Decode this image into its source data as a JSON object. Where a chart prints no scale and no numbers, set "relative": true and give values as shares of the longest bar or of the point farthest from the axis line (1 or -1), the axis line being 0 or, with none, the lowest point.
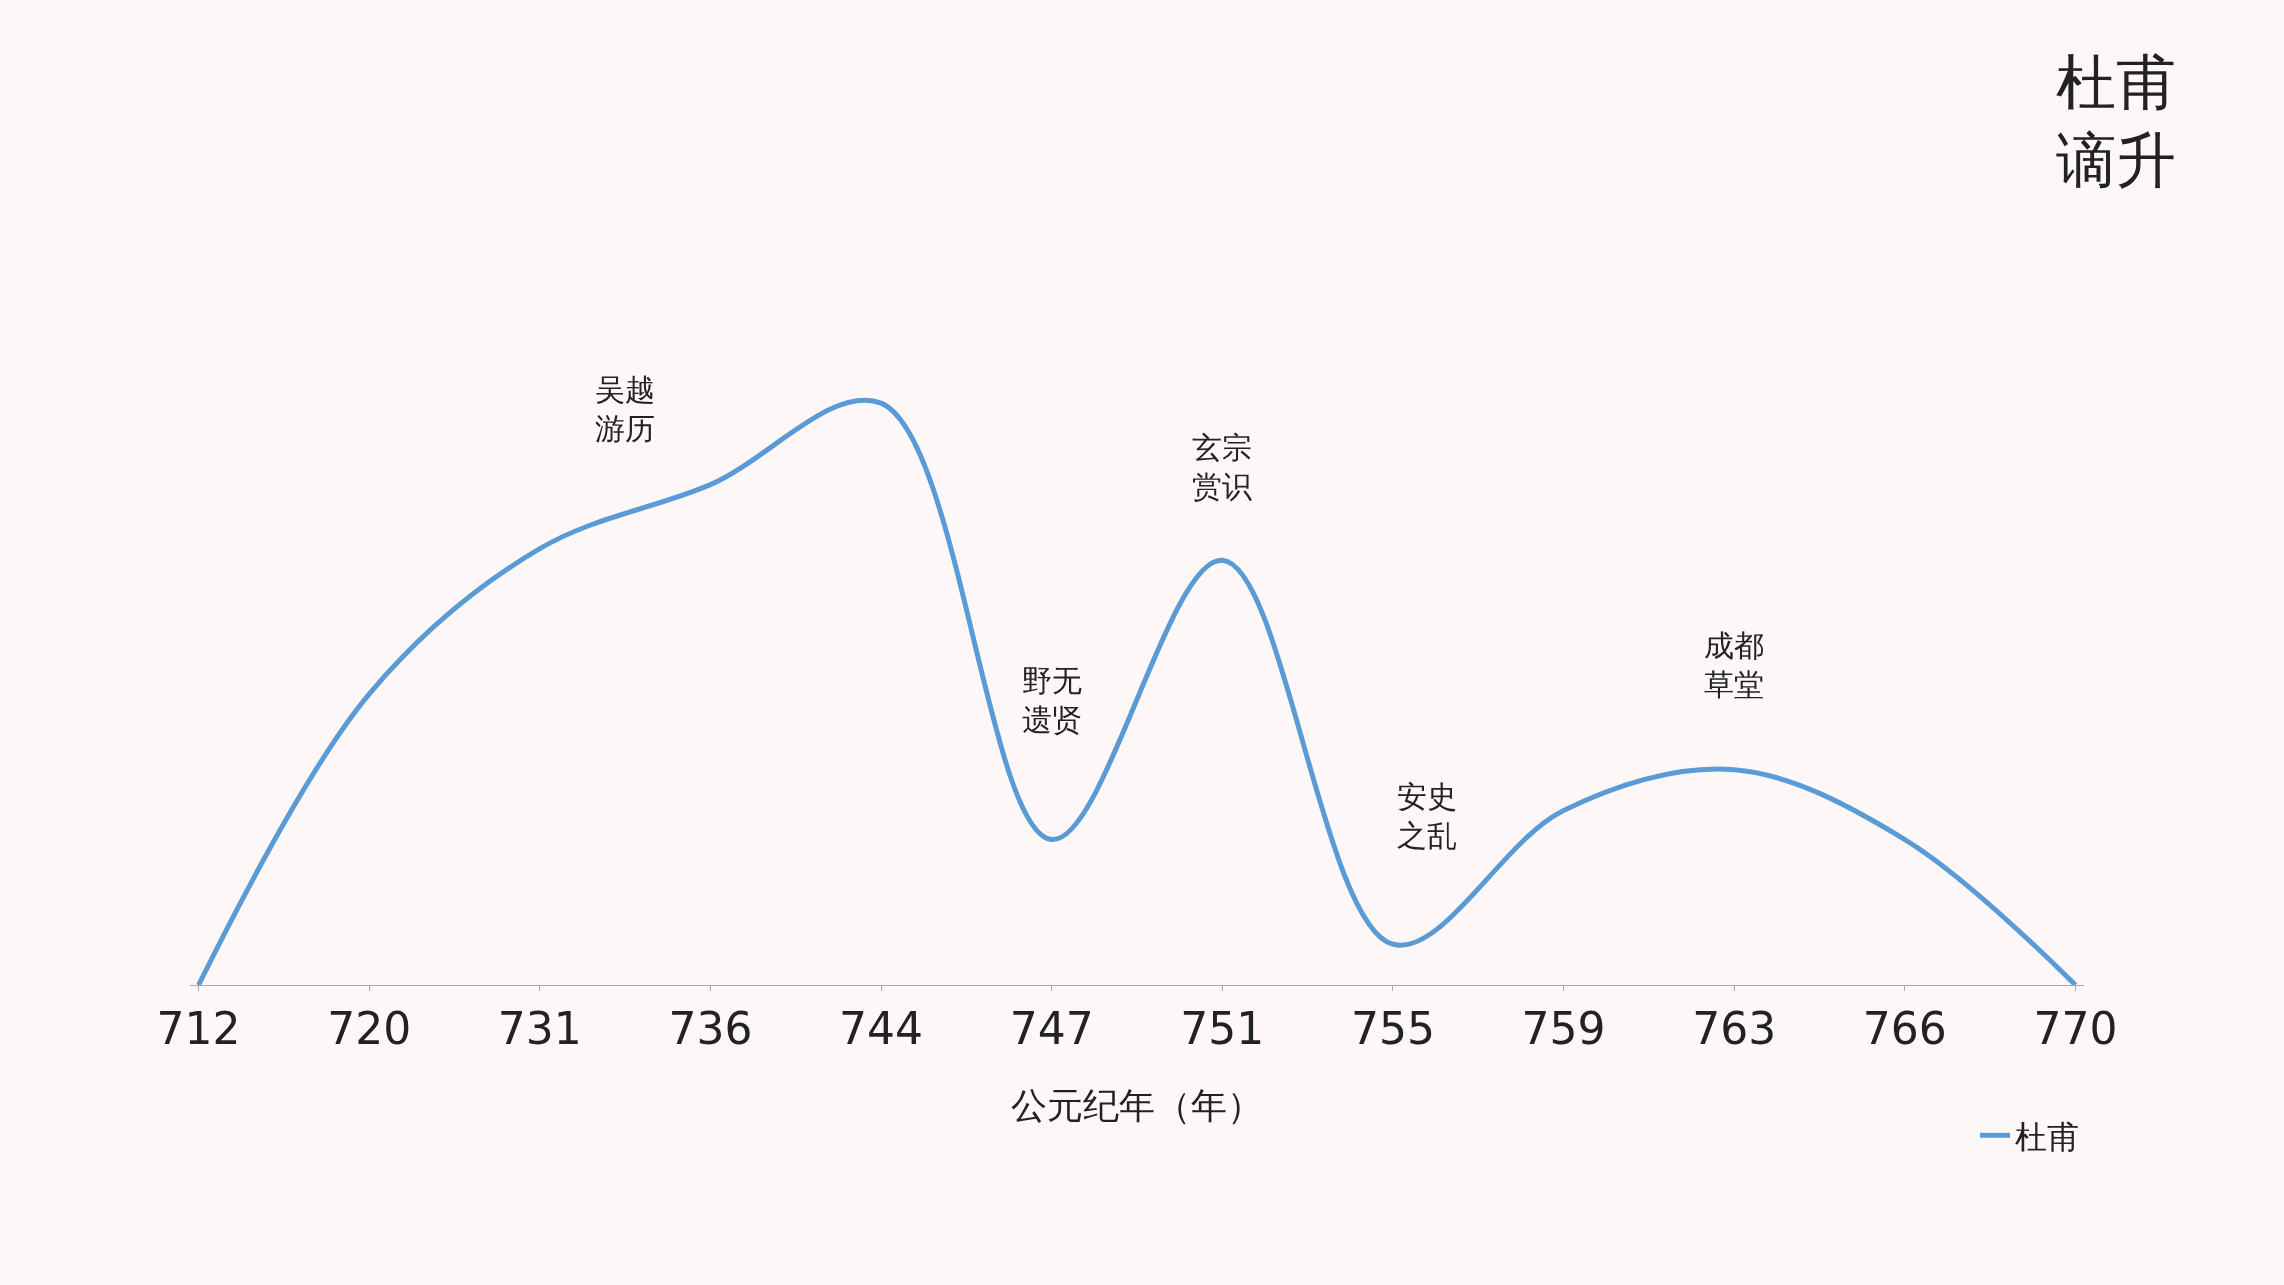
{
  "chart_data": {
    "type": "line",
    "title": "杜甫谪升",
    "xlabel": "公元纪年（年）",
    "relative": true,
    "categories": [
      "712",
      "720",
      "731",
      "736",
      "744",
      "747",
      "751",
      "755",
      "759",
      "763",
      "766",
      "770"
    ],
    "series": [
      {
        "name": "杜甫",
        "color": "#5b9bd5",
        "values": [
          0,
          0.5,
          0.75,
          0.86,
          1,
          0.25,
          0.73,
          0.07,
          0.3,
          0.37,
          0.25,
          0
        ]
      }
    ],
    "annotations": [
      "吴越游历",
      "野无遗贤",
      "玄宗赏识",
      "安史之乱",
      "成都草堂"
    ],
    "legend": "bottom right",
    "grid": false,
    "marker": "none",
    "line_style": "solid"
  }
}
